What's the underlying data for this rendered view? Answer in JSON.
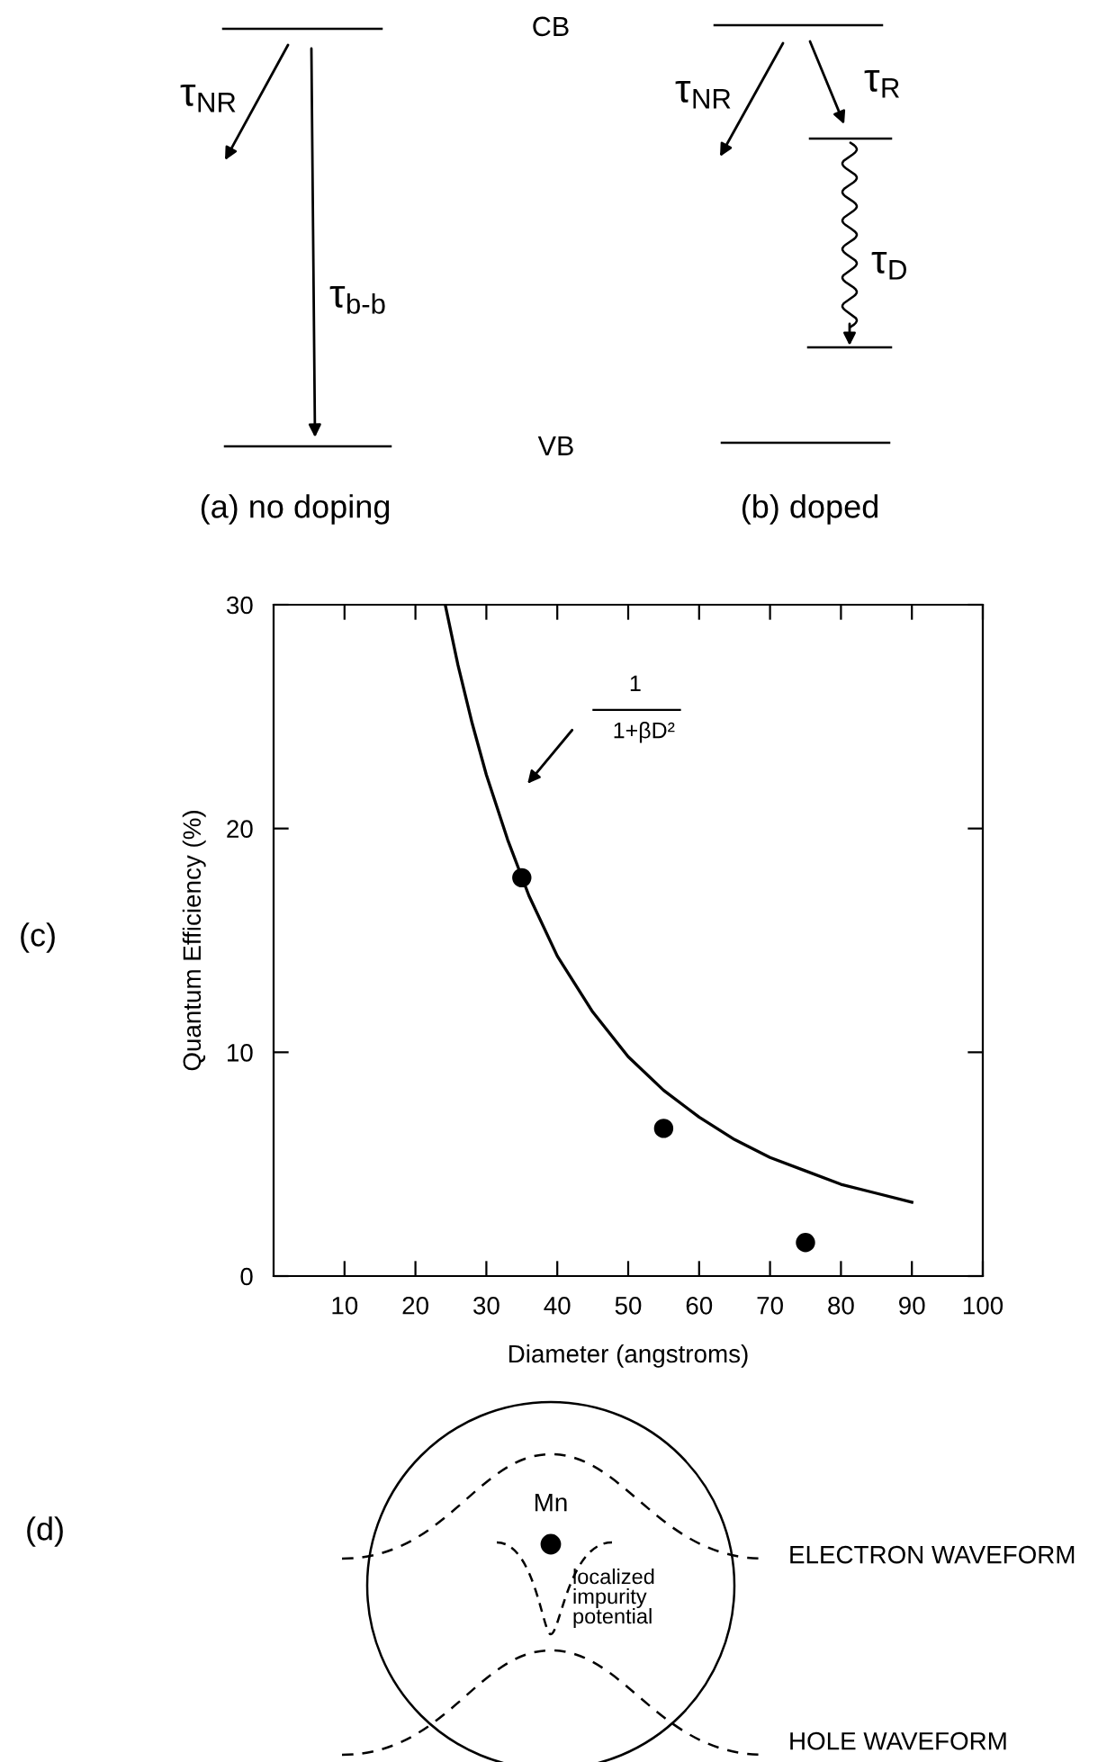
{
  "chart_data": [
    {
      "type": "other",
      "annotations": [
        "CB",
        "VB",
        "τ$_{NR}$",
        "τ$_{b-b}$",
        "τ$_{NR}$",
        "τ$_{R}$",
        "τ$_{D}$",
        "(a) no doping",
        "(b) doped"
      ]
    },
    {
      "type": "line",
      "xlabel": "Diameter (angstroms)",
      "ylabel": "Quantum Efficiency (%)",
      "xlim": [
        0,
        100
      ],
      "ylim": [
        0,
        30
      ],
      "xticks": [
        10,
        20,
        30,
        40,
        50,
        60,
        70,
        80,
        90,
        100
      ],
      "yticks": [
        0,
        10,
        20,
        30
      ],
      "series": [
        {
          "type": "line",
          "color": "#000000",
          "marker": "none",
          "x": [
            24.2,
            26,
            28,
            30,
            33,
            36,
            40,
            45,
            50,
            55,
            60,
            65,
            70,
            75,
            80,
            85,
            90
          ],
          "values": [
            30,
            27.3,
            24.7,
            22.4,
            19.5,
            17.0,
            14.3,
            11.8,
            9.8,
            8.3,
            7.1,
            6.1,
            5.3,
            4.7,
            4.1,
            3.7,
            3.3
          ]
        },
        {
          "type": "scatter",
          "color": "#000000",
          "marker": "circle",
          "x": [
            35,
            55,
            75
          ],
          "values": [
            17.8,
            6.6,
            1.5
          ]
        }
      ],
      "annotations": [
        "(c)",
        "1",
        "1+βD²"
      ]
    },
    {
      "type": "other",
      "annotations": [
        "(d)",
        "Mn",
        "localized\nimpurity\npotential",
        "ELECTRON WAVEFORM",
        "HOLE WAVEFORM"
      ]
    }
  ]
}
